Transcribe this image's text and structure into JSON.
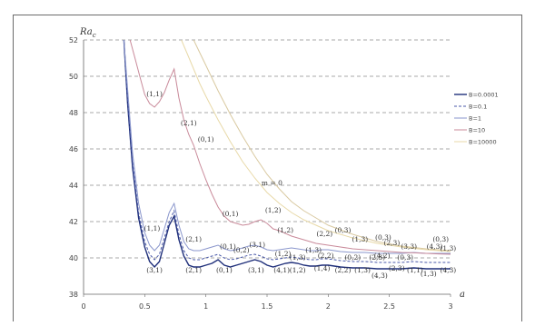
{
  "chart_data": {
    "type": "line",
    "xlabel": "a",
    "ylabel": "Ra",
    "ylabel_sub": "c",
    "xlim": [
      0,
      3
    ],
    "ylim": [
      38,
      52
    ],
    "x_ticks": [
      "0",
      "0.5",
      "1",
      "1.5",
      "2",
      "2.5",
      "3"
    ],
    "y_ticks": [
      "38",
      "40",
      "42",
      "44",
      "46",
      "48",
      "50",
      "52"
    ],
    "grid": "horizontal dashed",
    "legend_position": "right",
    "series": [
      {
        "name": "B=0.0001",
        "color": "#1f2f7a",
        "width": 1.4,
        "x": [
          0.33,
          0.36,
          0.4,
          0.45,
          0.5,
          0.54,
          0.58,
          0.62,
          0.66,
          0.7,
          0.74,
          0.78,
          0.82,
          0.86,
          0.9,
          0.95,
          1.0,
          1.05,
          1.1,
          1.15,
          1.2,
          1.25,
          1.3,
          1.35,
          1.4,
          1.45,
          1.5,
          1.55,
          1.6,
          1.65,
          1.7,
          1.75,
          1.8,
          1.85,
          1.9,
          1.95,
          2.0,
          2.1,
          2.2,
          2.3,
          2.4,
          2.5,
          2.6,
          2.7,
          2.8,
          2.9,
          3.0
        ],
        "y": [
          52.0,
          48.5,
          45.0,
          42.2,
          40.6,
          39.8,
          39.5,
          39.8,
          40.8,
          41.8,
          42.3,
          41.0,
          40.1,
          39.6,
          39.5,
          39.5,
          39.6,
          39.7,
          39.9,
          39.6,
          39.5,
          39.6,
          39.7,
          39.8,
          39.9,
          39.8,
          39.6,
          39.5,
          39.6,
          39.7,
          39.75,
          39.7,
          39.6,
          39.55,
          39.55,
          39.6,
          39.6,
          39.5,
          39.45,
          39.45,
          39.4,
          39.4,
          39.4,
          39.45,
          39.4,
          39.4,
          39.4
        ]
      },
      {
        "name": "B=0.1",
        "color": "#4a59a8",
        "width": 1.0,
        "dash": "3,2",
        "x": [
          0.33,
          0.36,
          0.4,
          0.45,
          0.5,
          0.54,
          0.58,
          0.62,
          0.66,
          0.7,
          0.74,
          0.78,
          0.82,
          0.86,
          0.9,
          0.95,
          1.0,
          1.05,
          1.1,
          1.15,
          1.2,
          1.25,
          1.3,
          1.35,
          1.4,
          1.45,
          1.5,
          1.55,
          1.6,
          1.65,
          1.7,
          1.75,
          1.8,
          1.85,
          1.9,
          1.95,
          2.0,
          2.1,
          2.2,
          2.3,
          2.4,
          2.5,
          2.6,
          2.7,
          2.8,
          2.9,
          3.0
        ],
        "y": [
          52.0,
          48.8,
          45.3,
          42.5,
          40.9,
          40.2,
          39.9,
          40.2,
          41.1,
          42.0,
          42.6,
          41.3,
          40.4,
          40.0,
          39.9,
          39.9,
          40.0,
          40.1,
          40.2,
          40.0,
          39.9,
          39.95,
          40.05,
          40.15,
          40.2,
          40.1,
          39.95,
          39.9,
          39.95,
          40.0,
          40.05,
          40.0,
          39.95,
          39.9,
          39.9,
          39.95,
          39.95,
          39.85,
          39.8,
          39.8,
          39.75,
          39.75,
          39.75,
          39.8,
          39.75,
          39.75,
          39.75
        ]
      },
      {
        "name": "B=1",
        "color": "#8a96cc",
        "width": 1.0,
        "x": [
          0.33,
          0.36,
          0.4,
          0.45,
          0.5,
          0.54,
          0.58,
          0.62,
          0.66,
          0.7,
          0.74,
          0.78,
          0.82,
          0.86,
          0.9,
          0.95,
          1.0,
          1.05,
          1.1,
          1.15,
          1.2,
          1.25,
          1.3,
          1.35,
          1.4,
          1.45,
          1.5,
          1.55,
          1.6,
          1.65,
          1.7,
          1.75,
          1.8,
          1.85,
          1.9,
          1.95,
          2.0,
          2.1,
          2.2,
          2.3,
          2.4,
          2.5,
          2.6,
          2.7,
          2.8,
          2.9,
          3.0
        ],
        "y": [
          52.0,
          49.3,
          45.8,
          43.0,
          41.4,
          40.7,
          40.4,
          40.7,
          41.6,
          42.5,
          43.0,
          41.8,
          40.9,
          40.5,
          40.4,
          40.4,
          40.5,
          40.6,
          40.7,
          40.5,
          40.4,
          40.45,
          40.55,
          40.65,
          40.7,
          40.6,
          40.45,
          40.4,
          40.45,
          40.5,
          40.55,
          40.5,
          40.45,
          40.4,
          40.4,
          40.45,
          40.45,
          40.35,
          40.3,
          40.3,
          40.25,
          40.25,
          40.25,
          40.3,
          40.25,
          40.25,
          40.25
        ]
      },
      {
        "name": "B=10",
        "color": "#c98a9a",
        "width": 1.0,
        "x": [
          0.38,
          0.42,
          0.46,
          0.5,
          0.54,
          0.58,
          0.62,
          0.66,
          0.7,
          0.74,
          0.78,
          0.82,
          0.86,
          0.9,
          0.95,
          1.0,
          1.05,
          1.1,
          1.15,
          1.2,
          1.25,
          1.3,
          1.35,
          1.4,
          1.45,
          1.5,
          1.55,
          1.6,
          1.7,
          1.8,
          1.9,
          2.0,
          2.1,
          2.2,
          2.3,
          2.4,
          2.5,
          2.6,
          2.7,
          2.8,
          2.9,
          3.0
        ],
        "y": [
          52.0,
          51.0,
          50.0,
          49.0,
          48.5,
          48.3,
          48.6,
          49.1,
          49.8,
          50.4,
          48.8,
          47.6,
          46.8,
          46.2,
          45.2,
          44.3,
          43.5,
          42.8,
          42.3,
          42.0,
          41.9,
          41.8,
          41.85,
          42.0,
          42.1,
          41.9,
          41.6,
          41.5,
          41.2,
          41.0,
          40.8,
          40.7,
          40.6,
          40.5,
          40.45,
          40.4,
          40.35,
          40.3,
          40.28,
          40.25,
          40.22,
          40.2
        ]
      },
      {
        "name": "B=10000",
        "color": "#e8d9a8",
        "width": 1.0,
        "x": [
          0.8,
          0.85,
          0.9,
          0.95,
          1.0,
          1.1,
          1.2,
          1.3,
          1.4,
          1.5,
          1.6,
          1.7,
          1.8,
          1.9,
          2.0,
          2.1,
          2.2,
          2.4,
          2.6,
          2.8,
          3.0
        ],
        "y": [
          52.0,
          51.2,
          50.4,
          49.6,
          48.9,
          47.6,
          46.4,
          45.3,
          44.4,
          43.6,
          43.0,
          42.5,
          42.1,
          41.8,
          41.5,
          41.3,
          41.1,
          40.8,
          40.6,
          40.45,
          40.35
        ]
      },
      {
        "name": "",
        "color": "#d9c9a0",
        "width": 1.0,
        "x": [
          0.9,
          0.95,
          1.0,
          1.1,
          1.2,
          1.3,
          1.4,
          1.5,
          1.6,
          1.7,
          1.8,
          1.9,
          2.0,
          2.2,
          2.4,
          2.6,
          2.8,
          3.0
        ],
        "y": [
          52.0,
          51.3,
          50.6,
          49.2,
          47.9,
          46.7,
          45.6,
          44.6,
          43.8,
          43.1,
          42.6,
          42.2,
          41.8,
          41.3,
          40.9,
          40.65,
          40.5,
          40.4
        ]
      }
    ],
    "annotations": [
      {
        "text": "(1,1)",
        "x": 0.58,
        "y": 48.9
      },
      {
        "text": "(2,1)",
        "x": 0.86,
        "y": 47.3
      },
      {
        "text": "(0,1)",
        "x": 1.0,
        "y": 46.4
      },
      {
        "text": "m = 0",
        "x": 1.54,
        "y": 44.0
      },
      {
        "text": "(0,1)",
        "x": 1.2,
        "y": 42.3
      },
      {
        "text": "(1,2)",
        "x": 1.55,
        "y": 42.5
      },
      {
        "text": "(1,2)",
        "x": 1.65,
        "y": 41.4
      },
      {
        "text": "(1,1)",
        "x": 0.56,
        "y": 41.5
      },
      {
        "text": "(2,1)",
        "x": 0.9,
        "y": 40.9
      },
      {
        "text": "(0,1)",
        "x": 1.18,
        "y": 40.5
      },
      {
        "text": "(3,1)",
        "x": 1.42,
        "y": 40.6
      },
      {
        "text": "(2,2)",
        "x": 1.97,
        "y": 41.2
      },
      {
        "text": "(0,3)",
        "x": 2.12,
        "y": 41.4
      },
      {
        "text": "(1,3)",
        "x": 2.26,
        "y": 40.9
      },
      {
        "text": "(2,3)",
        "x": 2.52,
        "y": 40.7
      },
      {
        "text": "(0,3)",
        "x": 2.45,
        "y": 41.0
      },
      {
        "text": "(3,3)",
        "x": 2.66,
        "y": 40.5
      },
      {
        "text": "(0,3)",
        "x": 2.92,
        "y": 40.9
      },
      {
        "text": "(4,3)",
        "x": 2.87,
        "y": 40.5
      },
      {
        "text": "(1,3)",
        "x": 2.98,
        "y": 40.4
      },
      {
        "text": "(0,2)",
        "x": 1.29,
        "y": 40.3
      },
      {
        "text": "(1,2)",
        "x": 1.63,
        "y": 40.1
      },
      {
        "text": "(1,3)",
        "x": 1.88,
        "y": 40.3
      },
      {
        "text": "(2,2)",
        "x": 1.98,
        "y": 40.0
      },
      {
        "text": "(0,2)",
        "x": 2.2,
        "y": 39.9
      },
      {
        "text": "(4,2)",
        "x": 2.44,
        "y": 40.0
      },
      {
        "text": "(2,3)",
        "x": 2.4,
        "y": 39.9
      },
      {
        "text": "(0,3)",
        "x": 2.63,
        "y": 39.9
      },
      {
        "text": "(1,3)",
        "x": 1.75,
        "y": 39.9
      },
      {
        "text": "(3,1)",
        "x": 0.58,
        "y": 39.2
      },
      {
        "text": "(2,1)",
        "x": 0.9,
        "y": 39.2
      },
      {
        "text": "(0,1)",
        "x": 1.15,
        "y": 39.2
      },
      {
        "text": "(3,1)",
        "x": 1.41,
        "y": 39.2
      },
      {
        "text": "(4,1)",
        "x": 1.62,
        "y": 39.2
      },
      {
        "text": "(1,2)",
        "x": 1.75,
        "y": 39.2
      },
      {
        "text": "(1,4)",
        "x": 1.95,
        "y": 39.3
      },
      {
        "text": "(2,2)",
        "x": 2.12,
        "y": 39.2
      },
      {
        "text": "(1,3)",
        "x": 2.28,
        "y": 39.2
      },
      {
        "text": "(4,3)",
        "x": 2.42,
        "y": 38.9
      },
      {
        "text": "(2,3)",
        "x": 2.56,
        "y": 39.3
      },
      {
        "text": "(1,1)",
        "x": 2.71,
        "y": 39.2
      },
      {
        "text": "(1,3)",
        "x": 2.82,
        "y": 39.0
      },
      {
        "text": "(4,3)",
        "x": 2.98,
        "y": 39.2
      }
    ]
  }
}
